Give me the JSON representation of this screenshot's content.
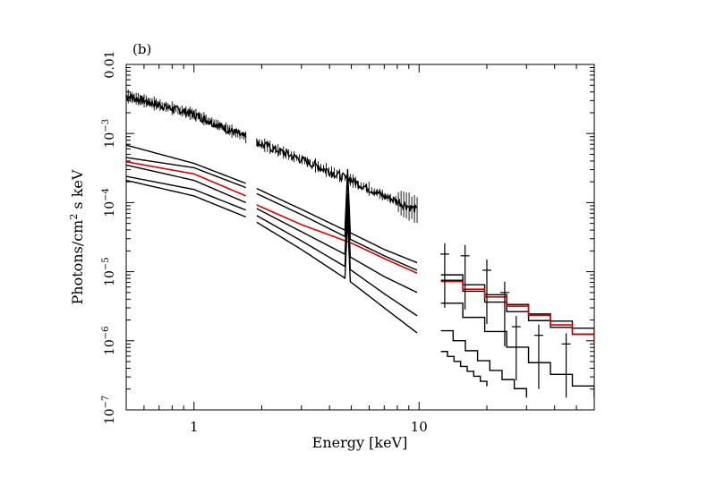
{
  "chart_data": {
    "type": "line",
    "panel_label": "(b)",
    "xlabel": "Energy [keV]",
    "ylabel_text": "Photons/cm",
    "ylabel_sup": "2",
    "ylabel_tail": " s keV",
    "x_scale": "log",
    "y_scale": "log",
    "xlim": [
      0.5,
      60
    ],
    "ylim": [
      1e-07,
      0.01
    ],
    "x_ticks": [
      {
        "value": 1,
        "label": "1"
      },
      {
        "value": 10,
        "label": "10"
      }
    ],
    "y_ticks": [
      {
        "value": 0.01,
        "base": "0.01",
        "exp": ""
      },
      {
        "value": 0.001,
        "base": "10",
        "exp": "−3"
      },
      {
        "value": 0.0001,
        "base": "10",
        "exp": "−4"
      },
      {
        "value": 1e-05,
        "base": "10",
        "exp": "−5"
      },
      {
        "value": 1e-06,
        "base": "10",
        "exp": "−6"
      },
      {
        "value": 1e-07,
        "base": "10",
        "exp": "−7"
      }
    ],
    "series_color": "#000000",
    "highlight_color": "#d00000",
    "bands": [
      {
        "emin": 0.5,
        "emax": 1.7
      },
      {
        "emin": 1.9,
        "emax": 9.8
      },
      {
        "emin": 12.5,
        "emax": 60
      }
    ],
    "series": [
      {
        "id": "top-data",
        "color": "#000000",
        "noisy": true,
        "points": [
          [
            0.5,
            0.0035
          ],
          [
            1,
            0.0019
          ],
          [
            1.7,
            0.00088
          ],
          [
            1.9,
            0.00075
          ],
          [
            3,
            0.00042
          ],
          [
            5,
            0.00021
          ],
          [
            7,
            0.000125
          ],
          [
            9.8,
            7.8e-05
          ]
        ]
      },
      {
        "id": "model-1",
        "color": "#000000",
        "line_at": 4.75,
        "points": [
          [
            0.5,
            0.00068
          ],
          [
            1,
            0.00037
          ],
          [
            1.7,
            0.00019
          ],
          [
            1.9,
            0.00016
          ],
          [
            3,
            8e-05
          ],
          [
            5,
            3.6e-05
          ],
          [
            7,
            2.1e-05
          ],
          [
            9.8,
            1.35e-05
          ],
          [
            12.5,
            9e-06
          ],
          [
            20,
            4.5e-06
          ],
          [
            30,
            2.5e-06
          ],
          [
            60,
            1.2e-06
          ]
        ]
      },
      {
        "id": "model-2",
        "color": "#000000",
        "line_at": 4.75,
        "points": [
          [
            0.5,
            0.00045
          ],
          [
            1,
            0.00032
          ],
          [
            1.7,
            0.000165
          ],
          [
            1.9,
            0.000135
          ],
          [
            3,
            6.7e-05
          ],
          [
            5,
            2.9e-05
          ],
          [
            7,
            1.7e-05
          ],
          [
            9.8,
            1.05e-05
          ],
          [
            12.5,
            7.5e-06
          ],
          [
            20,
            3.5e-06
          ],
          [
            30,
            2e-06
          ],
          [
            60,
            1e-06
          ]
        ]
      },
      {
        "id": "model-red",
        "color": "#d00000",
        "points": [
          [
            0.5,
            0.00039
          ],
          [
            1,
            0.00026
          ],
          [
            1.7,
            0.000125
          ],
          [
            1.9,
            9.25e-05
          ],
          [
            3,
            4.8e-05
          ],
          [
            5,
            2.6e-05
          ],
          [
            7,
            1.55e-05
          ],
          [
            9.8,
            9.5e-06
          ],
          [
            12.5,
            7.2e-06
          ],
          [
            20,
            4.2e-06
          ],
          [
            30,
            2.4e-06
          ],
          [
            60,
            9e-07
          ]
        ]
      },
      {
        "id": "model-3",
        "color": "#000000",
        "line_at": 4.75,
        "points": [
          [
            0.5,
            0.00035
          ],
          [
            1,
            0.00021
          ],
          [
            1.7,
            0.0001
          ],
          [
            1.9,
            8.2e-05
          ],
          [
            3,
            3.8e-05
          ],
          [
            5,
            1.6e-05
          ],
          [
            7,
            8.5e-06
          ],
          [
            9.8,
            5e-06
          ],
          [
            12.5,
            3.5e-06
          ],
          [
            20,
            1.3e-06
          ],
          [
            30,
            5e-07
          ],
          [
            60,
            1.5e-07
          ]
        ]
      },
      {
        "id": "model-4",
        "color": "#000000",
        "line_at": 4.75,
        "points": [
          [
            0.5,
            0.00024
          ],
          [
            1,
            0.000155
          ],
          [
            1.7,
            7.8e-05
          ],
          [
            1.9,
            6.5e-05
          ],
          [
            3,
            2.8e-05
          ],
          [
            5,
            1.05e-05
          ],
          [
            7,
            4.8e-06
          ],
          [
            9.8,
            2.3e-06
          ],
          [
            12.5,
            1.4e-06
          ],
          [
            20,
            4e-07
          ],
          [
            30,
            1.5e-07
          ]
        ]
      },
      {
        "id": "model-5",
        "color": "#000000",
        "line_at": 4.75,
        "points": [
          [
            0.5,
            0.00021
          ],
          [
            1,
            0.000125
          ],
          [
            1.7,
            6.2e-05
          ],
          [
            1.9,
            5.2e-05
          ],
          [
            3,
            2.1e-05
          ],
          [
            5,
            7e-06
          ],
          [
            7,
            3e-06
          ],
          [
            9.8,
            1.3e-06
          ],
          [
            12.5,
            7e-07
          ],
          [
            20,
            2.2e-07
          ]
        ]
      }
    ],
    "hard_xray_points": [
      {
        "x": 13,
        "y": 1.8e-05
      },
      {
        "x": 16,
        "y": 1.7e-05
      },
      {
        "x": 20,
        "y": 1.05e-05
      },
      {
        "x": 24,
        "y": 5e-06
      },
      {
        "x": 27,
        "y": 1.6e-06
      },
      {
        "x": 34,
        "y": 1.2e-06
      },
      {
        "x": 45,
        "y": 9e-07
      }
    ]
  }
}
